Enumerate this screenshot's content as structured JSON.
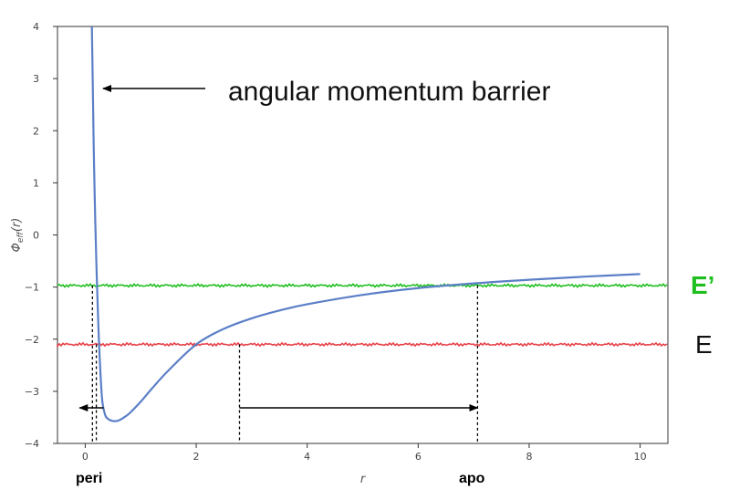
{
  "chart_data": {
    "type": "line",
    "xlabel": "r",
    "ylabel": "Φ_eff(r)",
    "xlim": [
      -0.5,
      10.5
    ],
    "ylim": [
      -4,
      4
    ],
    "x_ticks": [
      "0",
      "2",
      "4",
      "6",
      "8",
      "10"
    ],
    "y_ticks": [
      "−4",
      "−3",
      "−2",
      "−1",
      "0",
      "1",
      "2",
      "3",
      "4"
    ],
    "grid": false,
    "series": [
      {
        "color": "#5b7fc7",
        "x": [
          0.12,
          0.13,
          0.14,
          0.15,
          0.16,
          0.18,
          0.2,
          0.22,
          0.25,
          0.3,
          0.35,
          0.4,
          0.5,
          0.6,
          0.7,
          0.8,
          1.0,
          1.2,
          1.5,
          2.0,
          2.5,
          3.0,
          3.5,
          4.0,
          5.0,
          6.0,
          7.0,
          8.0,
          9.0,
          10.0
        ],
        "y": [
          4.0,
          3.3,
          2.6,
          1.9,
          1.3,
          0.3,
          -0.5,
          -1.2,
          -2.1,
          -3.1,
          -3.42,
          -3.52,
          -3.57,
          -3.56,
          -3.5,
          -3.42,
          -3.2,
          -2.95,
          -2.6,
          -2.1,
          -1.8,
          -1.6,
          -1.45,
          -1.33,
          -1.15,
          -1.02,
          -0.93,
          -0.86,
          -0.8,
          -0.75
        ]
      }
    ],
    "energy_levels": [
      {
        "label": "E’",
        "y": -0.97,
        "color": "#1fbf1f"
      },
      {
        "label": "E",
        "y": -2.1,
        "color": "#e8424a"
      }
    ],
    "crossings": [
      0.13,
      0.2,
      2.78,
      7.07
    ],
    "annotations": {
      "barrier": "angular momentum barrier",
      "peri": "peri",
      "apo": "apo"
    }
  }
}
